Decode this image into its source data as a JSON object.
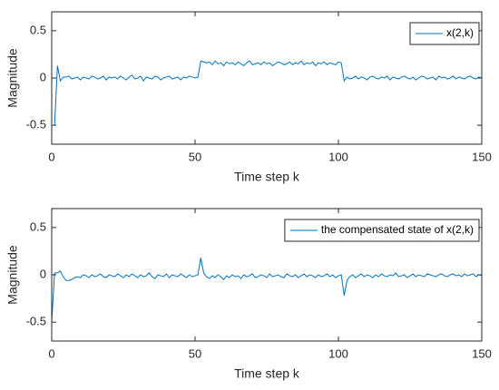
{
  "chart_data": [
    {
      "type": "line",
      "xlabel": "Time step k",
      "ylabel": "Magnitude",
      "xlim": [
        0,
        150
      ],
      "xticks": [
        0,
        50,
        100,
        150
      ],
      "ylim": [
        -0.7,
        0.7
      ],
      "yticks": [
        -0.5,
        0,
        0.5
      ],
      "legend": "upper right",
      "x": [
        0,
        1,
        2,
        3,
        4,
        5,
        6,
        7,
        8,
        9,
        10,
        11,
        12,
        13,
        14,
        15,
        16,
        17,
        18,
        19,
        20,
        21,
        22,
        23,
        24,
        25,
        26,
        27,
        28,
        29,
        30,
        31,
        32,
        33,
        34,
        35,
        36,
        37,
        38,
        39,
        40,
        41,
        42,
        43,
        44,
        45,
        46,
        47,
        48,
        49,
        50,
        51,
        52,
        53,
        54,
        55,
        56,
        57,
        58,
        59,
        60,
        61,
        62,
        63,
        64,
        65,
        66,
        67,
        68,
        69,
        70,
        71,
        72,
        73,
        74,
        75,
        76,
        77,
        78,
        79,
        80,
        81,
        82,
        83,
        84,
        85,
        86,
        87,
        88,
        89,
        90,
        91,
        92,
        93,
        94,
        95,
        96,
        97,
        98,
        99,
        100,
        101,
        102,
        103,
        104,
        105,
        106,
        107,
        108,
        109,
        110,
        111,
        112,
        113,
        114,
        115,
        116,
        117,
        118,
        119,
        120,
        121,
        122,
        123,
        124,
        125,
        126,
        127,
        128,
        129,
        130,
        131,
        132,
        133,
        134,
        135,
        136,
        137,
        138,
        139,
        140,
        141,
        142,
        143,
        144,
        145,
        146,
        147,
        148,
        149,
        150
      ],
      "series": [
        {
          "name": "x(2,k)",
          "color": "#0072bd",
          "values": [
            -0.5,
            -0.5,
            0.13,
            -0.03,
            0.01,
            0.01,
            0.02,
            -0.01,
            0.0,
            0.01,
            -0.02,
            0.01,
            0.0,
            -0.01,
            0.02,
            0.01,
            -0.01,
            0.0,
            0.02,
            -0.02,
            0.01,
            0.0,
            0.01,
            -0.01,
            0.02,
            0.0,
            -0.02,
            0.01,
            0.03,
            -0.01,
            0.0,
            0.02,
            -0.03,
            0.01,
            0.0,
            -0.01,
            0.02,
            0.01,
            -0.02,
            0.0,
            0.01,
            0.02,
            -0.01,
            0.0,
            0.01,
            -0.02,
            0.01,
            0.0,
            0.02,
            0.01,
            0.0,
            0.01,
            0.18,
            0.17,
            0.16,
            0.17,
            0.14,
            0.18,
            0.15,
            0.16,
            0.13,
            0.17,
            0.15,
            0.16,
            0.14,
            0.17,
            0.15,
            0.13,
            0.16,
            0.18,
            0.14,
            0.15,
            0.16,
            0.14,
            0.17,
            0.15,
            0.16,
            0.13,
            0.15,
            0.17,
            0.16,
            0.14,
            0.15,
            0.17,
            0.14,
            0.16,
            0.15,
            0.18,
            0.14,
            0.16,
            0.15,
            0.17,
            0.13,
            0.16,
            0.15,
            0.17,
            0.14,
            0.16,
            0.15,
            0.14,
            0.17,
            0.16,
            -0.03,
            0.01,
            -0.01,
            0.0,
            0.02,
            -0.01,
            0.01,
            0.0,
            -0.02,
            0.01,
            0.02,
            0.0,
            -0.01,
            0.01,
            0.0,
            0.02,
            -0.02,
            0.01,
            0.0,
            -0.01,
            0.01,
            0.02,
            0.0,
            -0.01,
            0.01,
            -0.02,
            0.0,
            0.02,
            0.01,
            -0.01,
            0.0,
            0.01,
            -0.02,
            0.02,
            0.0,
            0.01,
            -0.01,
            0.0,
            0.02,
            -0.01,
            0.01,
            0.0,
            -0.01,
            0.01,
            0.02,
            0.0,
            -0.01,
            0.01,
            0.0
          ]
        }
      ]
    },
    {
      "type": "line",
      "xlabel": "Time step k",
      "ylabel": "Magnitude",
      "xlim": [
        0,
        150
      ],
      "xticks": [
        0,
        50,
        100,
        150
      ],
      "ylim": [
        -0.7,
        0.7
      ],
      "yticks": [
        -0.5,
        0,
        0.5
      ],
      "legend": "upper right",
      "x": [
        0,
        1,
        2,
        3,
        4,
        5,
        6,
        7,
        8,
        9,
        10,
        11,
        12,
        13,
        14,
        15,
        16,
        17,
        18,
        19,
        20,
        21,
        22,
        23,
        24,
        25,
        26,
        27,
        28,
        29,
        30,
        31,
        32,
        33,
        34,
        35,
        36,
        37,
        38,
        39,
        40,
        41,
        42,
        43,
        44,
        45,
        46,
        47,
        48,
        49,
        50,
        51,
        52,
        53,
        54,
        55,
        56,
        57,
        58,
        59,
        60,
        61,
        62,
        63,
        64,
        65,
        66,
        67,
        68,
        69,
        70,
        71,
        72,
        73,
        74,
        75,
        76,
        77,
        78,
        79,
        80,
        81,
        82,
        83,
        84,
        85,
        86,
        87,
        88,
        89,
        90,
        91,
        92,
        93,
        94,
        95,
        96,
        97,
        98,
        99,
        100,
        101,
        102,
        103,
        104,
        105,
        106,
        107,
        108,
        109,
        110,
        111,
        112,
        113,
        114,
        115,
        116,
        117,
        118,
        119,
        120,
        121,
        122,
        123,
        124,
        125,
        126,
        127,
        128,
        129,
        130,
        131,
        132,
        133,
        134,
        135,
        136,
        137,
        138,
        139,
        140,
        141,
        142,
        143,
        144,
        145,
        146,
        147,
        148,
        149,
        150
      ],
      "series": [
        {
          "name": "the compensated state of x(2,k)",
          "color": "#0072bd",
          "values": [
            -0.5,
            0.02,
            0.02,
            0.04,
            -0.02,
            -0.06,
            -0.06,
            -0.05,
            -0.03,
            -0.02,
            -0.03,
            0.0,
            -0.01,
            -0.03,
            0.0,
            -0.02,
            -0.01,
            0.01,
            -0.02,
            -0.03,
            0.0,
            -0.01,
            -0.02,
            0.01,
            -0.01,
            -0.03,
            0.0,
            -0.02,
            0.01,
            -0.01,
            -0.03,
            0.0,
            -0.02,
            -0.01,
            0.02,
            -0.02,
            -0.04,
            0.0,
            -0.01,
            -0.02,
            0.01,
            -0.03,
            0.0,
            -0.01,
            -0.02,
            0.01,
            -0.01,
            -0.03,
            0.0,
            -0.02,
            -0.01,
            0.0,
            0.18,
            0.02,
            -0.02,
            -0.04,
            -0.01,
            -0.03,
            0.0,
            -0.02,
            -0.05,
            -0.01,
            -0.03,
            0.0,
            -0.02,
            -0.01,
            -0.04,
            0.0,
            -0.02,
            -0.01,
            0.01,
            -0.03,
            -0.02,
            0.0,
            -0.01,
            -0.03,
            0.01,
            -0.02,
            -0.01,
            0.0,
            -0.02,
            -0.03,
            0.01,
            -0.01,
            -0.02,
            0.0,
            -0.03,
            -0.01,
            0.01,
            -0.02,
            0.0,
            -0.01,
            -0.03,
            0.0,
            -0.02,
            -0.01,
            0.01,
            -0.02,
            0.0,
            -0.03,
            -0.01,
            0.0,
            -0.22,
            -0.06,
            -0.02,
            0.0,
            -0.03,
            -0.01,
            0.01,
            -0.02,
            0.0,
            -0.01,
            -0.03,
            0.0,
            -0.02,
            0.01,
            -0.01,
            -0.02,
            0.0,
            -0.01,
            0.02,
            -0.02,
            -0.01,
            0.0,
            -0.03,
            -0.01,
            0.01,
            -0.02,
            0.0,
            -0.01,
            -0.02,
            0.01,
            0.0,
            -0.01,
            -0.02,
            0.0,
            0.01,
            -0.01,
            -0.02,
            0.0,
            0.01,
            -0.01,
            0.0,
            -0.02,
            0.01,
            -0.01,
            0.0,
            0.01,
            -0.02,
            0.0,
            -0.01
          ]
        }
      ]
    }
  ]
}
